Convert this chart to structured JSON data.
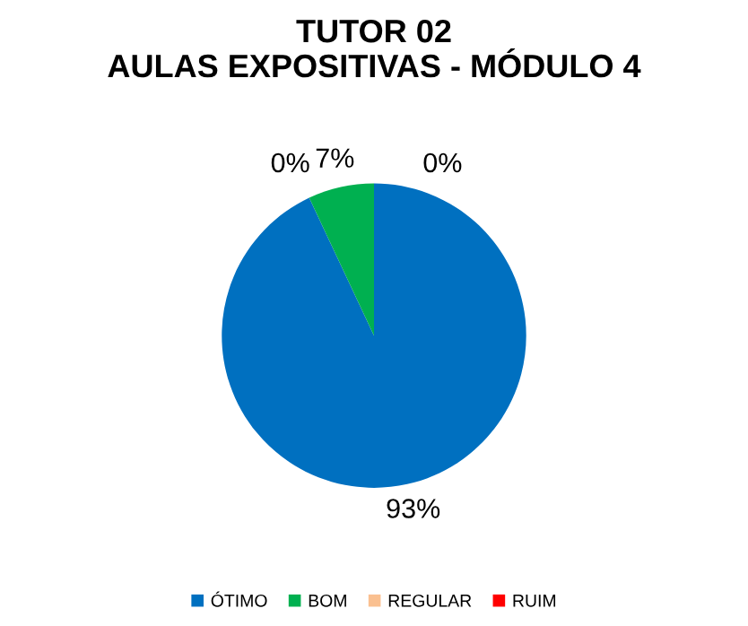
{
  "chart_data": {
    "type": "pie",
    "title": "TUTOR 02\nAULAS EXPOSITIVAS - MÓDULO 4",
    "categories": [
      "ÓTIMO",
      "BOM",
      "REGULAR",
      "RUIM"
    ],
    "values": [
      93,
      7,
      0,
      0
    ],
    "colors": [
      "#0070c0",
      "#00b050",
      "#fac090",
      "#ff0000"
    ],
    "value_labels": [
      "93%",
      "7%",
      "0%",
      "0%"
    ],
    "legend": "bottom"
  }
}
